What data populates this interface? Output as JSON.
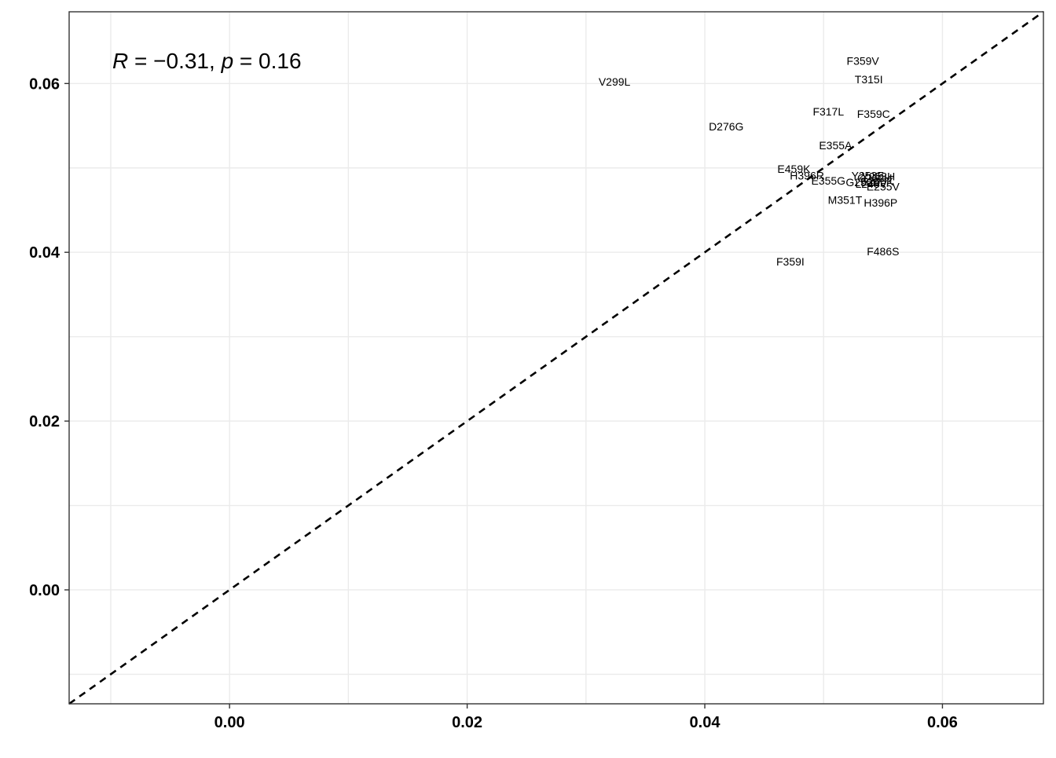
{
  "chart_data": {
    "type": "scatter",
    "title": "",
    "xlabel": "",
    "ylabel": "",
    "xlim": [
      -0.0135,
      0.0685
    ],
    "ylim": [
      -0.0135,
      0.0685
    ],
    "x_ticks": [
      0.0,
      0.02,
      0.04,
      0.06
    ],
    "y_ticks": [
      0.0,
      0.02,
      0.04,
      0.06
    ],
    "x_tick_labels": [
      "0.00",
      "0.02",
      "0.04",
      "0.06"
    ],
    "y_tick_labels": [
      "0.00",
      "0.02",
      "0.04",
      "0.06"
    ],
    "grid": true,
    "reference_line": {
      "type": "identity",
      "style": "dashed",
      "color": "#000000"
    },
    "annotation": {
      "r_symbol": "R",
      "r_value": " = −0.31, ",
      "p_symbol": "p",
      "p_value": " = 0.16"
    },
    "points": [
      {
        "label": "F359V",
        "x": 0.0533,
        "y": 0.0627
      },
      {
        "label": "T315I",
        "x": 0.0538,
        "y": 0.0605
      },
      {
        "label": "V299L",
        "x": 0.0324,
        "y": 0.0602
      },
      {
        "label": "F317L",
        "x": 0.0504,
        "y": 0.0567
      },
      {
        "label": "F359C",
        "x": 0.0542,
        "y": 0.0564
      },
      {
        "label": "D276G",
        "x": 0.0418,
        "y": 0.0549
      },
      {
        "label": "E355A",
        "x": 0.051,
        "y": 0.0527
      },
      {
        "label": "E459K",
        "x": 0.0475,
        "y": 0.0499
      },
      {
        "label": "H396R",
        "x": 0.0486,
        "y": 0.0491
      },
      {
        "label": "E355G",
        "x": 0.0504,
        "y": 0.0485
      },
      {
        "label": "Y253H",
        "x": 0.0546,
        "y": 0.049
      },
      {
        "label": "Y253F",
        "x": 0.0537,
        "y": 0.0491
      },
      {
        "label": "Q252H",
        "x": 0.0543,
        "y": 0.0488
      },
      {
        "label": "G250E",
        "x": 0.0533,
        "y": 0.0483
      },
      {
        "label": "L248V",
        "x": 0.054,
        "y": 0.0481
      },
      {
        "label": "E255K",
        "x": 0.0545,
        "y": 0.0484
      },
      {
        "label": "E255V",
        "x": 0.055,
        "y": 0.0478
      },
      {
        "label": "M351T",
        "x": 0.0518,
        "y": 0.0462
      },
      {
        "label": "H396P",
        "x": 0.0548,
        "y": 0.0459
      },
      {
        "label": "F486S",
        "x": 0.055,
        "y": 0.0401
      },
      {
        "label": "F359I",
        "x": 0.0472,
        "y": 0.0389
      }
    ]
  }
}
